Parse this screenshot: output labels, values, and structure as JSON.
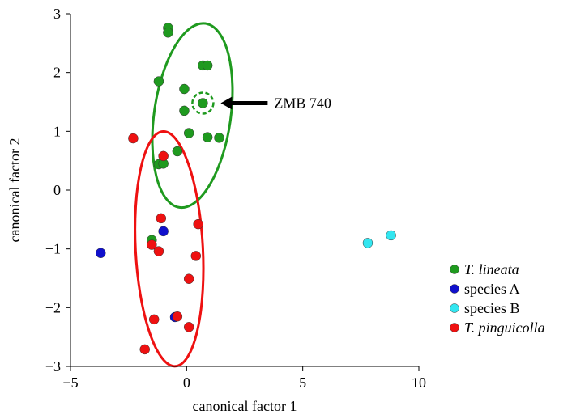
{
  "chart_data": {
    "type": "scatter",
    "xlabel": "canonical factor 1",
    "ylabel": "canonical factor 2",
    "xlim": [
      -5,
      10
    ],
    "ylim": [
      -3,
      3
    ],
    "x_ticks": [
      -5,
      0,
      5,
      10
    ],
    "y_ticks": [
      -3,
      -2,
      -1,
      0,
      1,
      2,
      3
    ],
    "x_tick_labels": [
      "−5",
      "0",
      "5",
      "10"
    ],
    "y_tick_labels": [
      "−3",
      "−2",
      "−1",
      "0",
      "1",
      "2",
      "3"
    ],
    "grid": false,
    "legend_position": "bottom-right",
    "series": [
      {
        "name": "T. lineata",
        "italic": true,
        "color": "#1f9a1f",
        "points": [
          [
            -0.8,
            2.76
          ],
          [
            -0.8,
            2.68
          ],
          [
            0.7,
            2.12
          ],
          [
            0.9,
            2.12
          ],
          [
            -1.2,
            1.85
          ],
          [
            -0.1,
            1.72
          ],
          [
            -0.1,
            1.35
          ],
          [
            0.1,
            0.97
          ],
          [
            0.9,
            0.9
          ],
          [
            1.4,
            0.89
          ],
          [
            -0.4,
            0.66
          ],
          [
            -1.2,
            0.44
          ],
          [
            -1.0,
            0.45
          ],
          [
            -1.5,
            -0.85
          ]
        ]
      },
      {
        "name": "species A",
        "italic": false,
        "color": "#1010cc",
        "points": [
          [
            -3.7,
            -1.07
          ],
          [
            -1.0,
            -0.7
          ],
          [
            -0.5,
            -2.16
          ]
        ]
      },
      {
        "name": "species B",
        "italic": false,
        "color": "#33e6f0",
        "points": [
          [
            7.8,
            -0.9
          ],
          [
            8.8,
            -0.77
          ]
        ]
      },
      {
        "name": "T. pinguicolla",
        "italic": true,
        "color": "#ee1111",
        "points": [
          [
            -2.3,
            0.88
          ],
          [
            -1.0,
            0.58
          ],
          [
            -1.1,
            -0.48
          ],
          [
            0.5,
            -0.58
          ],
          [
            -1.5,
            -0.93
          ],
          [
            -1.2,
            -1.04
          ],
          [
            0.4,
            -1.12
          ],
          [
            0.1,
            -1.51
          ],
          [
            -1.4,
            -2.2
          ],
          [
            -0.4,
            -2.15
          ],
          [
            0.1,
            -2.33
          ],
          [
            -1.8,
            -2.71
          ]
        ]
      }
    ],
    "ellipses": [
      {
        "series": "T. lineata",
        "color": "#1f9a1f",
        "cx": 0.25,
        "cy": 1.27,
        "rx": 1.65,
        "ry": 1.58,
        "rotate_deg": 8
      },
      {
        "series": "T. pinguicolla",
        "color": "#ee1111",
        "cx": -0.75,
        "cy": -1.0,
        "rx": 1.45,
        "ry": 2.0,
        "rotate_deg": -3
      }
    ],
    "highlight": {
      "label": "ZMB 740",
      "x": 0.7,
      "y": 1.48,
      "color": "#1f9a1f"
    }
  }
}
